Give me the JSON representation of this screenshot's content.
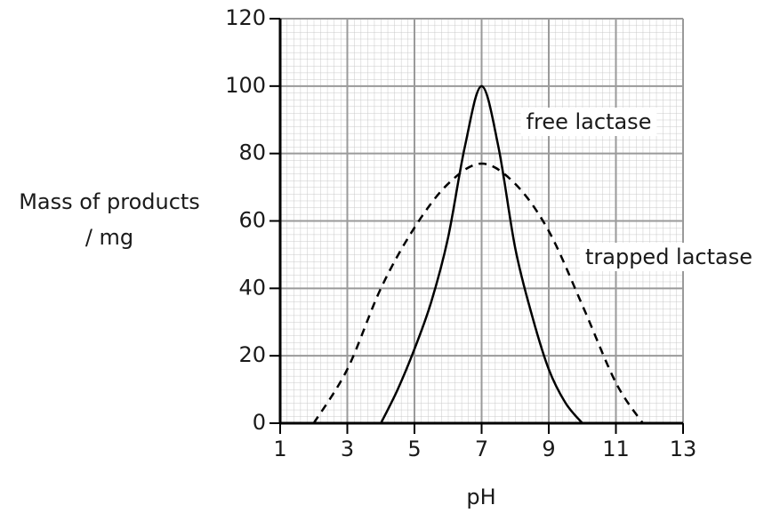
{
  "chart_data": {
    "type": "line",
    "ylabel": [
      "Mass of products",
      "/ mg"
    ],
    "xlabel": "pH",
    "xlim": [
      1,
      13
    ],
    "xticks": [
      1,
      3,
      5,
      7,
      9,
      11,
      13
    ],
    "ylim": [
      0,
      120
    ],
    "yticks": [
      0,
      20,
      40,
      60,
      80,
      100,
      120
    ],
    "grid": true,
    "series": [
      {
        "name": "free lactase",
        "color": "#000000",
        "dash": false,
        "x": [
          4,
          4.5,
          5,
          5.5,
          6,
          6.5,
          7,
          7.5,
          8,
          8.5,
          9,
          9.5,
          10
        ],
        "values": [
          0,
          10,
          22,
          36,
          55,
          82,
          100,
          82,
          52,
          32,
          16,
          6,
          0
        ]
      },
      {
        "name": "trapped lactase",
        "color": "#000000",
        "dash": true,
        "x": [
          2,
          3,
          4,
          5,
          6,
          7,
          8,
          9,
          10,
          11,
          11.8
        ],
        "values": [
          0,
          16,
          40,
          58,
          71,
          77,
          71,
          57,
          35,
          12,
          0
        ]
      }
    ]
  }
}
